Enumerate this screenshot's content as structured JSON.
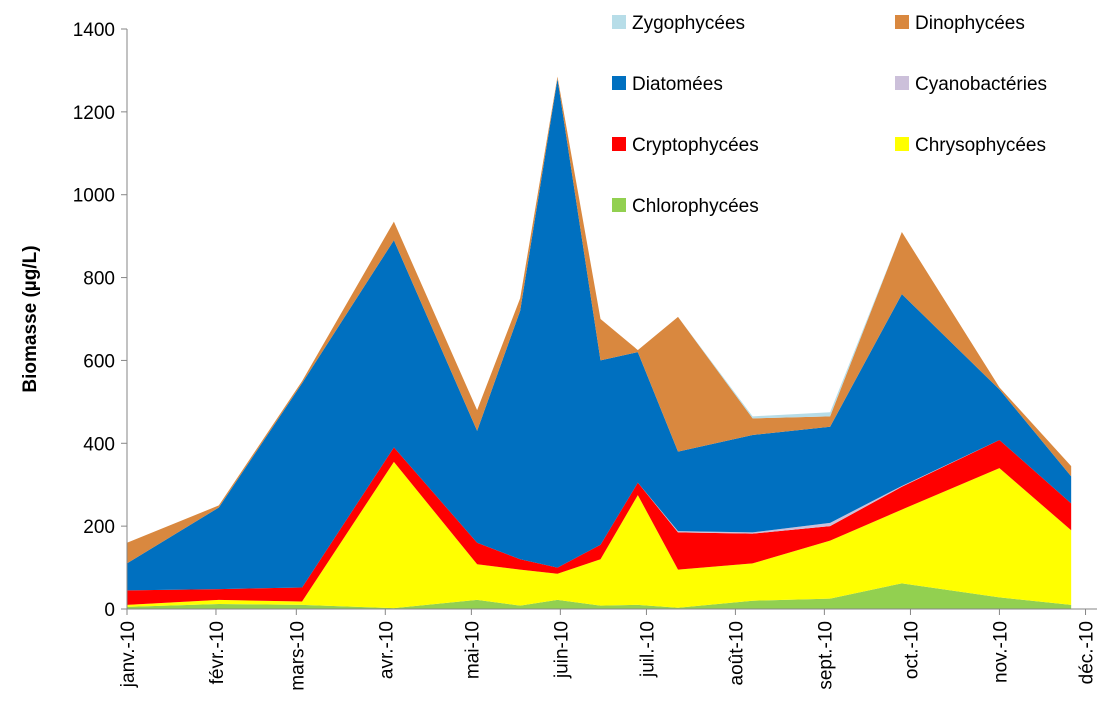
{
  "chart_data": {
    "type": "stacked_area",
    "ylabel": "Biomasse (µg/L)",
    "x": [
      0,
      32,
      61,
      93,
      122,
      137,
      150,
      165,
      178,
      192,
      218,
      245,
      270,
      304,
      329
    ],
    "xlim": [
      0,
      338
    ],
    "xticks": [
      {
        "value": 0,
        "label": "janv.-10"
      },
      {
        "value": 31,
        "label": "févr.-10"
      },
      {
        "value": 59,
        "label": "mars-10"
      },
      {
        "value": 90,
        "label": "avr.-10"
      },
      {
        "value": 120,
        "label": "mai-10"
      },
      {
        "value": 151,
        "label": "juin-10"
      },
      {
        "value": 181,
        "label": "juil.-10"
      },
      {
        "value": 212,
        "label": "août-10"
      },
      {
        "value": 243,
        "label": "sept.-10"
      },
      {
        "value": 273,
        "label": "oct.-10"
      },
      {
        "value": 304,
        "label": "nov.-10"
      },
      {
        "value": 334,
        "label": "déc.-10"
      }
    ],
    "ylim": [
      0,
      1400
    ],
    "yticks": [
      0,
      200,
      400,
      600,
      800,
      1000,
      1200,
      1400
    ],
    "series": [
      {
        "name": "Zygophycées",
        "color": "#b7dde8",
        "values": [
          0,
          0,
          0,
          0,
          0,
          0,
          0,
          0,
          0,
          0,
          5,
          10,
          0,
          0,
          0
        ]
      },
      {
        "name": "Dinophycées",
        "color": "#d9883f",
        "values": [
          50,
          5,
          5,
          45,
          50,
          30,
          5,
          100,
          5,
          325,
          40,
          25,
          150,
          5,
          25
        ]
      },
      {
        "name": "Diatomées",
        "color": "#0070c0",
        "values": [
          65,
          197,
          493,
          500,
          270,
          600,
          1180,
          445,
          315,
          192,
          235,
          232,
          463,
          122,
          65
        ]
      },
      {
        "name": "Cyanobactéries",
        "color": "#ccc0da",
        "values": [
          0,
          0,
          0,
          0,
          0,
          0,
          0,
          0,
          0,
          3,
          3,
          8,
          2,
          0,
          0
        ]
      },
      {
        "name": "Cryptophycées",
        "color": "#ff0000",
        "values": [
          35,
          26,
          34,
          35,
          52,
          25,
          15,
          35,
          30,
          90,
          72,
          35,
          55,
          68,
          65
        ]
      },
      {
        "name": "Chrysophycées",
        "color": "#ffff00",
        "values": [
          5,
          10,
          8,
          353,
          86,
          87,
          63,
          112,
          265,
          92,
          90,
          140,
          178,
          312,
          180
        ]
      },
      {
        "name": "Chlorophycées",
        "color": "#92d050",
        "values": [
          5,
          12,
          10,
          2,
          22,
          8,
          22,
          8,
          10,
          3,
          20,
          25,
          62,
          28,
          10
        ]
      }
    ]
  }
}
